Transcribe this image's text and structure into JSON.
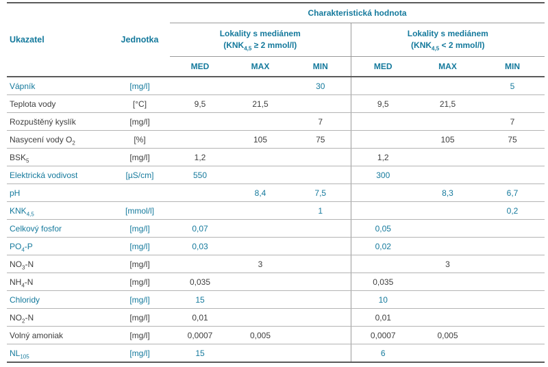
{
  "table": {
    "top_header": "Charakteristická hodnota",
    "col_ukazatel": "Ukazatel",
    "col_jednotka": "Jednotka",
    "group1": {
      "line1": "Lokality s mediánem",
      "l2pre": "(KNK",
      "l2sub": "4,5",
      "l2post": " ≥ 2 mmol/l)"
    },
    "group2": {
      "line1": "Lokality s mediánem",
      "l2pre": "(KNK",
      "l2sub": "4,5",
      "l2post": " < 2 mmol/l)"
    },
    "subheaders": [
      "MED",
      "MAX",
      "MIN"
    ],
    "colors": {
      "teal": "#14799c",
      "text": "#3d3d3d",
      "heavy_line": "#5a5a5a",
      "light_line": "#b3b3b3"
    },
    "rows": [
      {
        "label": [
          {
            "t": "Vápník"
          }
        ],
        "unit": "[mg/l]",
        "teal": true,
        "values": [
          "",
          "",
          "30",
          "",
          "",
          "5"
        ]
      },
      {
        "label": [
          {
            "t": "Teplota vody"
          }
        ],
        "unit": "[°C]",
        "teal": false,
        "values": [
          "9,5",
          "21,5",
          "",
          "9,5",
          "21,5",
          ""
        ]
      },
      {
        "label": [
          {
            "t": "Rozpuštěný kyslík"
          }
        ],
        "unit": "[mg/l]",
        "teal": false,
        "values": [
          "",
          "",
          "7",
          "",
          "",
          "7"
        ]
      },
      {
        "label": [
          {
            "t": "Nasycení vody O"
          },
          {
            "t": "2",
            "sub": true
          }
        ],
        "unit": "[%]",
        "teal": false,
        "values": [
          "",
          "105",
          "75",
          "",
          "105",
          "75"
        ]
      },
      {
        "label": [
          {
            "t": "BSK"
          },
          {
            "t": "5",
            "sub": true
          }
        ],
        "unit": "[mg/l]",
        "teal": false,
        "values": [
          "1,2",
          "",
          "",
          "1,2",
          "",
          ""
        ]
      },
      {
        "label": [
          {
            "t": "Elektrická vodivost"
          }
        ],
        "unit": "[µS/cm]",
        "teal": true,
        "values": [
          "550",
          "",
          "",
          "300",
          "",
          ""
        ]
      },
      {
        "label": [
          {
            "t": "pH"
          }
        ],
        "unit": "",
        "teal": true,
        "values": [
          "",
          "8,4",
          "7,5",
          "",
          "8,3",
          "6,7"
        ]
      },
      {
        "label": [
          {
            "t": "KNK"
          },
          {
            "t": "4,5",
            "sub": true
          }
        ],
        "unit": "[mmol/l]",
        "teal": true,
        "values": [
          "",
          "",
          "1",
          "",
          "",
          "0,2"
        ]
      },
      {
        "label": [
          {
            "t": "Celkový fosfor"
          }
        ],
        "unit": "[mg/l]",
        "teal": true,
        "values": [
          "0,07",
          "",
          "",
          "0,05",
          "",
          ""
        ]
      },
      {
        "label": [
          {
            "t": "PO"
          },
          {
            "t": "4",
            "sub": true
          },
          {
            "t": "-P"
          }
        ],
        "unit": "[mg/l]",
        "teal": true,
        "values": [
          "0,03",
          "",
          "",
          "0,02",
          "",
          ""
        ]
      },
      {
        "label": [
          {
            "t": "NO"
          },
          {
            "t": "3",
            "sub": true
          },
          {
            "t": "-N"
          }
        ],
        "unit": "[mg/l]",
        "teal": false,
        "values": [
          "",
          "3",
          "",
          "",
          "3",
          ""
        ]
      },
      {
        "label": [
          {
            "t": "NH"
          },
          {
            "t": "4",
            "sub": true
          },
          {
            "t": "-N"
          }
        ],
        "unit": "[mg/l]",
        "teal": false,
        "values": [
          "0,035",
          "",
          "",
          "0,035",
          "",
          ""
        ]
      },
      {
        "label": [
          {
            "t": "Chloridy"
          }
        ],
        "unit": "[mg/l]",
        "teal": true,
        "values": [
          "15",
          "",
          "",
          "10",
          "",
          ""
        ]
      },
      {
        "label": [
          {
            "t": "NO"
          },
          {
            "t": "2",
            "sub": true
          },
          {
            "t": "-N"
          }
        ],
        "unit": "[mg/l]",
        "teal": false,
        "values": [
          "0,01",
          "",
          "",
          "0,01",
          "",
          ""
        ]
      },
      {
        "label": [
          {
            "t": "Volný amoniak"
          }
        ],
        "unit": "[mg/l]",
        "teal": false,
        "values": [
          "0,0007",
          "0,005",
          "",
          "0,0007",
          "0,005",
          ""
        ]
      },
      {
        "label": [
          {
            "t": "NL"
          },
          {
            "t": "105",
            "sub": true
          }
        ],
        "unit": "[mg/l]",
        "teal": true,
        "values": [
          "15",
          "",
          "",
          "6",
          "",
          ""
        ]
      }
    ]
  }
}
